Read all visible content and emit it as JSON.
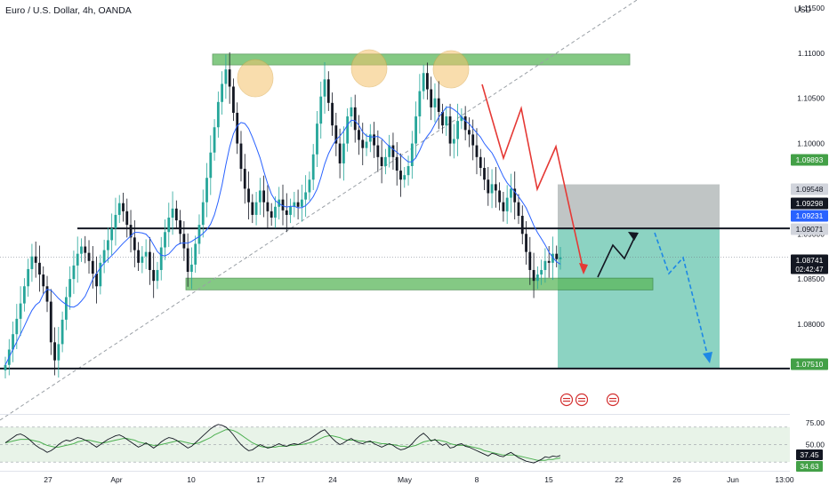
{
  "header": {
    "title": "Euro / U.S. Dollar, 4h, OANDA",
    "currency": "USD"
  },
  "colors": {
    "up": "#26a69a",
    "down": "#131722",
    "zone_green": "#5bb85b",
    "ma": "#2962ff",
    "trendline": "#9aa0a6",
    "red_path": "#e53935",
    "blue_path": "#1e88e5",
    "stop_zone": "#9ea6a6",
    "target_zone": "#2eaf8f",
    "rsi_line": "#131722",
    "rsi_ma": "#4caf50",
    "rsi_band": "#e8f3e8"
  },
  "axis": {
    "price_ticks": [
      "1.11500",
      "1.11000",
      "1.10500",
      "1.10000",
      "1.09500",
      "1.09000",
      "1.08500",
      "1.08000"
    ],
    "date_labels": [
      "27",
      "Apr",
      "10",
      "17",
      "24",
      "May",
      "8",
      "15",
      "22",
      "26",
      "Jun",
      "13:00"
    ],
    "rsi_ticks": [
      "75.00",
      "50.00"
    ]
  },
  "price_tags": [
    {
      "label": "1.09893",
      "value": 1.09893,
      "bg": "#43a047",
      "fg": "#ffffff"
    },
    {
      "label": "1.09548",
      "value": 1.09548,
      "bg": "#d1d4dc",
      "fg": "#131722"
    },
    {
      "label": "1.09298",
      "value": 1.09298,
      "bg": "#131722",
      "fg": "#ffffff"
    },
    {
      "label": "1.09231",
      "value": 1.09231,
      "bg": "#2962ff",
      "fg": "#ffffff"
    },
    {
      "label": "1.09071",
      "value": 1.09071,
      "bg": "#d1d4dc",
      "fg": "#131722"
    },
    {
      "label": "1.08741",
      "sublabel": "02:42:47",
      "value": 1.08741,
      "bg": "#131722",
      "fg": "#ffffff"
    },
    {
      "label": "1.07510",
      "value": 1.0751,
      "bg": "#43a047",
      "fg": "#ffffff"
    }
  ],
  "rsi_tags": [
    {
      "label": "37.45",
      "value": 37.45,
      "bg": "#131722",
      "fg": "#ffffff"
    },
    {
      "label": "34.63",
      "value": 34.63,
      "bg": "#43a047",
      "fg": "#ffffff"
    }
  ],
  "chart_data": {
    "type": "candlestick",
    "symbol": "EURUSD",
    "timeframe": "4h",
    "ylim": [
      1.0715,
      1.1172
    ],
    "levels": {
      "resistance_zone": [
        1.1087,
        1.1099
      ],
      "support_zone": [
        1.0838,
        1.0851
      ],
      "neckline": 1.0906,
      "lower_line": 1.0751,
      "current_price": 1.08741
    },
    "position": {
      "entry": 1.0906,
      "stop": 1.09548,
      "target": 1.0751
    },
    "close_series": [
      1.0755,
      1.0772,
      1.0789,
      1.0806,
      1.0823,
      1.0842,
      1.0861,
      1.0875,
      1.0868,
      1.0855,
      1.0842,
      1.0825,
      1.078,
      1.076,
      1.0778,
      1.0805,
      1.083,
      1.085,
      1.0865,
      1.0878,
      1.0886,
      1.0879,
      1.087,
      1.0856,
      1.0842,
      1.0868,
      1.0882,
      1.0893,
      1.0906,
      1.0921,
      1.0934,
      1.0925,
      1.091,
      1.0896,
      1.0882,
      1.0868,
      1.0875,
      1.088,
      1.086,
      1.0848,
      1.086,
      1.0885,
      1.0902,
      1.0918,
      1.0928,
      1.0915,
      1.09,
      1.0884,
      1.0858,
      1.0866,
      1.0889,
      1.091,
      1.0935,
      1.0962,
      1.099,
      1.1018,
      1.1046,
      1.1066,
      1.1082,
      1.1063,
      1.1034,
      1.1,
      1.0972,
      1.095,
      1.0935,
      1.0921,
      1.0935,
      1.0948,
      1.0935,
      1.0925,
      1.0918,
      1.093,
      1.0938,
      1.0926,
      1.0921,
      1.093,
      1.0935,
      1.093,
      1.0938,
      1.0946,
      1.096,
      1.0988,
      1.1022,
      1.1052,
      1.1071,
      1.1045,
      1.102,
      1.1,
      1.0978,
      1.1,
      1.103,
      1.104,
      1.1015,
      1.1004,
      1.0995,
      1.1002,
      1.101,
      1.0998,
      1.0985,
      1.0975,
      1.0985,
      1.0998,
      1.0985,
      1.097,
      1.096,
      1.0965,
      1.0975,
      1.1,
      1.103,
      1.1058,
      1.1078,
      1.106,
      1.104,
      1.105,
      1.1035,
      1.102,
      1.103,
      1.1,
      1.1005,
      1.1025,
      1.103,
      1.1015,
      1.101,
      1.0998,
      1.0985,
      1.0973,
      1.096,
      1.0945,
      1.0955,
      1.0948,
      1.0935,
      1.0925,
      1.094,
      1.095,
      1.0935,
      1.092,
      1.09,
      1.088,
      1.086,
      1.0848,
      1.0855,
      1.086,
      1.087,
      1.0868,
      1.0878,
      1.0872,
      1.0874
    ],
    "rsi_ylim": [
      20,
      85
    ],
    "rsi_levels": [
      70,
      50,
      30
    ],
    "rsi_series": [
      52,
      55,
      58,
      61,
      62,
      60,
      57,
      53,
      49,
      46,
      44,
      41,
      43,
      46,
      50,
      53,
      55,
      54,
      56,
      58,
      57,
      55,
      53,
      50,
      47,
      50,
      53,
      56,
      58,
      60,
      61,
      59,
      56,
      53,
      50,
      47,
      49,
      52,
      49,
      46,
      49,
      53,
      56,
      58,
      57,
      55,
      52,
      49,
      46,
      48,
      52,
      56,
      60,
      64,
      68,
      71,
      73,
      72,
      70,
      66,
      61,
      55,
      50,
      46,
      43,
      44,
      47,
      50,
      48,
      46,
      47,
      49,
      51,
      49,
      48,
      50,
      51,
      50,
      52,
      54,
      56,
      59,
      62,
      65,
      67,
      62,
      57,
      53,
      50,
      52,
      55,
      57,
      54,
      52,
      51,
      53,
      54,
      51,
      49,
      47,
      49,
      51,
      49,
      46,
      44,
      45,
      47,
      51,
      56,
      60,
      63,
      59,
      54,
      56,
      52,
      49,
      51,
      46,
      47,
      50,
      51,
      48,
      47,
      45,
      43,
      41,
      39,
      37,
      40,
      39,
      37,
      36,
      39,
      41,
      38,
      35,
      33,
      31,
      30,
      29,
      31,
      33,
      36,
      35,
      37,
      36,
      37.45
    ],
    "rsi_ma_series": [
      52,
      53,
      54,
      55,
      56,
      56,
      56,
      55,
      54,
      53,
      51,
      49,
      48,
      47,
      47,
      48,
      49,
      50,
      51,
      53,
      54,
      55,
      55,
      54,
      53,
      52,
      52,
      53,
      54,
      55,
      56,
      57,
      57,
      56,
      55,
      53,
      52,
      51,
      50,
      49,
      49,
      50,
      51,
      52,
      53,
      54,
      54,
      53,
      52,
      51,
      51,
      52,
      54,
      56,
      58,
      61,
      63,
      65,
      67,
      67,
      66,
      64,
      61,
      58,
      55,
      52,
      50,
      48,
      47,
      47,
      47,
      47,
      48,
      48,
      48,
      49,
      49,
      50,
      50,
      51,
      52,
      53,
      55,
      57,
      59,
      60,
      60,
      59,
      58,
      56,
      55,
      55,
      55,
      54,
      54,
      53,
      53,
      53,
      52,
      51,
      51,
      50,
      50,
      49,
      48,
      48,
      47,
      48,
      49,
      51,
      53,
      54,
      55,
      55,
      55,
      54,
      53,
      51,
      50,
      49,
      49,
      49,
      48,
      47,
      46,
      45,
      43,
      42,
      41,
      40,
      39,
      38,
      38,
      38,
      38,
      37,
      36,
      35,
      34,
      33,
      32,
      32,
      32,
      33,
      33,
      34,
      34.63
    ]
  }
}
